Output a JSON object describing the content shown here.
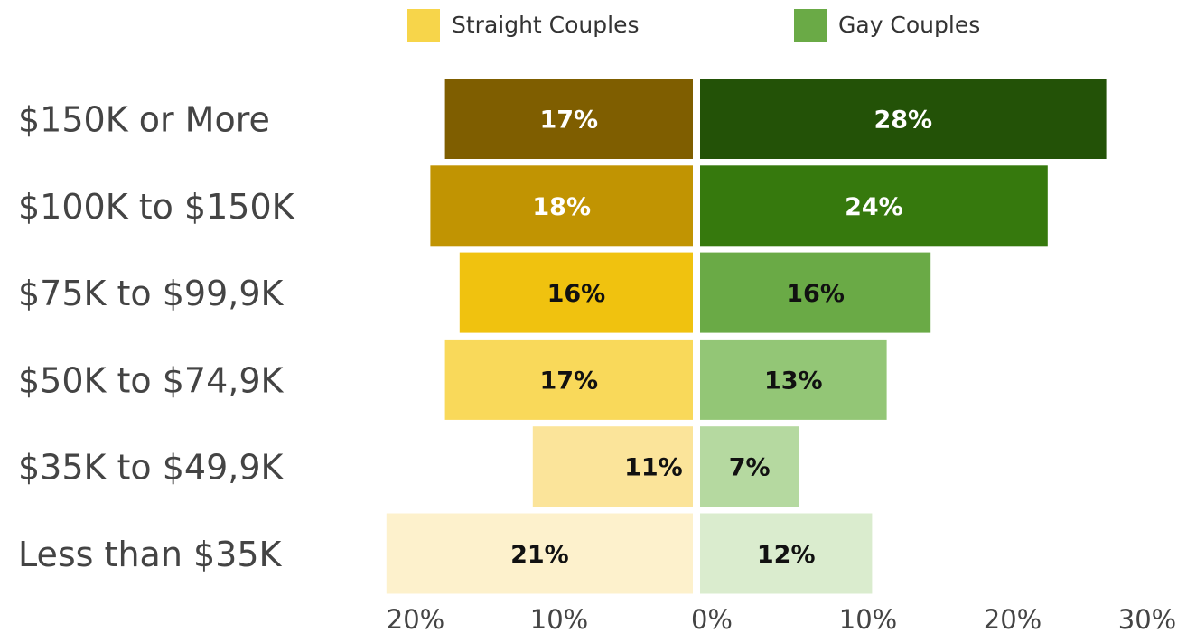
{
  "chart_data": {
    "type": "bar",
    "orientation": "horizontal-diverging",
    "categories": [
      "$150K  or More",
      "$100K to $150K",
      "$75K to $99,9K",
      "$50K to $74,9K",
      "$35K to $49,9K",
      "Less than $35K"
    ],
    "series": [
      {
        "name": "Straight Couples",
        "values": [
          17,
          18,
          16,
          17,
          11,
          21
        ],
        "value_labels": [
          "17%",
          "18%",
          "16%",
          "17%",
          "11%",
          "21%"
        ],
        "legend_color": "#f7d54a",
        "colors": [
          "#7f5e00",
          "#c19402",
          "#f0c20f",
          "#f9d95a",
          "#fbe49a",
          "#fdf1cc"
        ],
        "label_colors": [
          "#ffffff",
          "#ffffff",
          "#111111",
          "#111111",
          "#111111",
          "#111111"
        ]
      },
      {
        "name": "Gay Couples",
        "values": [
          28,
          24,
          16,
          13,
          7,
          12
        ],
        "value_labels": [
          "28%",
          "24%",
          "16%",
          "13%",
          "7%",
          "12%"
        ],
        "legend_color": "#6aaa46",
        "colors": [
          "#235207",
          "#36790d",
          "#6aaa46",
          "#93c676",
          "#b5d9a0",
          "#daecce"
        ],
        "label_colors": [
          "#ffffff",
          "#ffffff",
          "#111111",
          "#111111",
          "#111111",
          "#111111"
        ]
      }
    ],
    "x_ticks": [
      "20%",
      "10%",
      "0%",
      "10%",
      "20%",
      "30%"
    ],
    "x_tick_values": [
      -20,
      -10,
      0,
      10,
      20,
      30
    ],
    "xlim": [
      -21,
      30
    ],
    "xlabel": "",
    "ylabel": "",
    "title": "",
    "grid": false,
    "legend_position": "top"
  }
}
